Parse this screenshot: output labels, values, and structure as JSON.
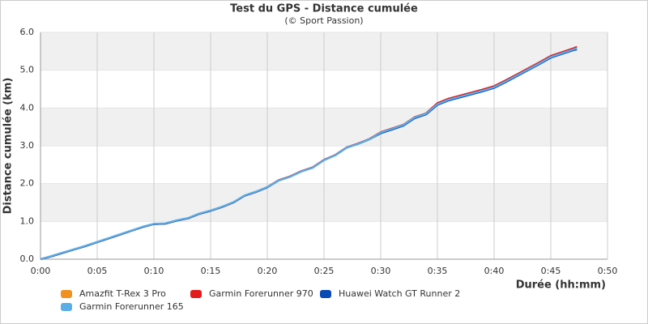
{
  "chart_data": {
    "type": "line",
    "title": "Test du GPS - Distance cumulée",
    "subtitle": "(© Sport Passion)",
    "y_label": "Distance cumulée (km)",
    "x_label": "Durée (hh:mm)",
    "x": [
      0,
      1,
      2,
      3,
      4,
      5,
      6,
      7,
      8,
      9,
      10,
      11,
      12,
      13,
      14,
      15,
      16,
      17,
      18,
      19,
      20,
      21,
      22,
      23,
      24,
      25,
      26,
      27,
      28,
      29,
      30,
      31,
      32,
      33,
      34,
      35,
      36,
      37,
      38,
      39,
      40,
      41,
      42,
      43,
      44,
      45,
      46,
      47,
      47.3
    ],
    "series": [
      {
        "name": "Amazfit T-Rex 3 Pro",
        "color": "#f0901e",
        "values": [
          0,
          0.08,
          0.17,
          0.26,
          0.35,
          0.45,
          0.55,
          0.65,
          0.75,
          0.85,
          0.93,
          0.94,
          1.02,
          1.08,
          1.2,
          1.28,
          1.38,
          1.5,
          1.68,
          1.78,
          1.9,
          2.08,
          2.18,
          2.32,
          2.42,
          2.62,
          2.75,
          2.95,
          3.05,
          3.17,
          3.35,
          3.45,
          3.55,
          3.75,
          3.85,
          4.1,
          4.22,
          4.3,
          4.38,
          4.46,
          4.55,
          4.7,
          4.86,
          5.02,
          5.18,
          5.35,
          5.45,
          5.55,
          5.58
        ]
      },
      {
        "name": "Garmin Forerunner 970",
        "color": "#e41a1c",
        "values": [
          0,
          0.08,
          0.17,
          0.26,
          0.35,
          0.45,
          0.55,
          0.65,
          0.75,
          0.85,
          0.93,
          0.94,
          1.02,
          1.08,
          1.2,
          1.28,
          1.38,
          1.5,
          1.68,
          1.78,
          1.91,
          2.09,
          2.19,
          2.33,
          2.43,
          2.63,
          2.76,
          2.96,
          3.06,
          3.18,
          3.36,
          3.46,
          3.56,
          3.76,
          3.86,
          4.13,
          4.25,
          4.33,
          4.41,
          4.49,
          4.58,
          4.73,
          4.89,
          5.05,
          5.21,
          5.38,
          5.48,
          5.58,
          5.62
        ]
      },
      {
        "name": "Huawei Watch GT Runner 2",
        "color": "#0a4ab4",
        "values": [
          0,
          0.08,
          0.17,
          0.26,
          0.35,
          0.45,
          0.55,
          0.65,
          0.75,
          0.85,
          0.93,
          0.94,
          1.02,
          1.08,
          1.2,
          1.28,
          1.38,
          1.5,
          1.68,
          1.78,
          1.9,
          2.08,
          2.18,
          2.32,
          2.42,
          2.62,
          2.75,
          2.95,
          3.05,
          3.17,
          3.33,
          3.43,
          3.53,
          3.73,
          3.83,
          4.08,
          4.2,
          4.28,
          4.36,
          4.44,
          4.53,
          4.68,
          4.84,
          5.0,
          5.16,
          5.33,
          5.43,
          5.53,
          5.55
        ]
      },
      {
        "name": "Garmin Forerunner 165",
        "color": "#5aaee8",
        "values": [
          0,
          0.09,
          0.18,
          0.27,
          0.36,
          0.46,
          0.56,
          0.66,
          0.76,
          0.86,
          0.94,
          0.95,
          1.03,
          1.09,
          1.21,
          1.29,
          1.39,
          1.51,
          1.69,
          1.79,
          1.91,
          2.08,
          2.18,
          2.32,
          2.42,
          2.62,
          2.75,
          2.95,
          3.05,
          3.17,
          3.35,
          3.45,
          3.55,
          3.75,
          3.85,
          4.1,
          4.22,
          4.3,
          4.38,
          4.46,
          4.55,
          4.7,
          4.86,
          5.02,
          5.18,
          5.35,
          5.45,
          5.55,
          5.58
        ]
      }
    ],
    "xlim": [
      0,
      50
    ],
    "xticks": [
      {
        "value": 0,
        "label": "0:00"
      },
      {
        "value": 5,
        "label": "0:05"
      },
      {
        "value": 10,
        "label": "0:10"
      },
      {
        "value": 15,
        "label": "0:15"
      },
      {
        "value": 20,
        "label": "0:20"
      },
      {
        "value": 25,
        "label": "0:25"
      },
      {
        "value": 30,
        "label": "0:30"
      },
      {
        "value": 35,
        "label": "0:35"
      },
      {
        "value": 40,
        "label": "0:40"
      },
      {
        "value": 45,
        "label": "0:45"
      },
      {
        "value": 50,
        "label": "0:50"
      }
    ],
    "ylim": [
      0,
      6
    ],
    "yticks": [
      {
        "value": 0,
        "label": "0.0"
      },
      {
        "value": 1,
        "label": "1.0"
      },
      {
        "value": 2,
        "label": "2.0"
      },
      {
        "value": 3,
        "label": "3.0"
      },
      {
        "value": 4,
        "label": "4.0"
      },
      {
        "value": 5,
        "label": "5.0"
      },
      {
        "value": 6,
        "label": "6.0"
      }
    ],
    "grid": true
  }
}
